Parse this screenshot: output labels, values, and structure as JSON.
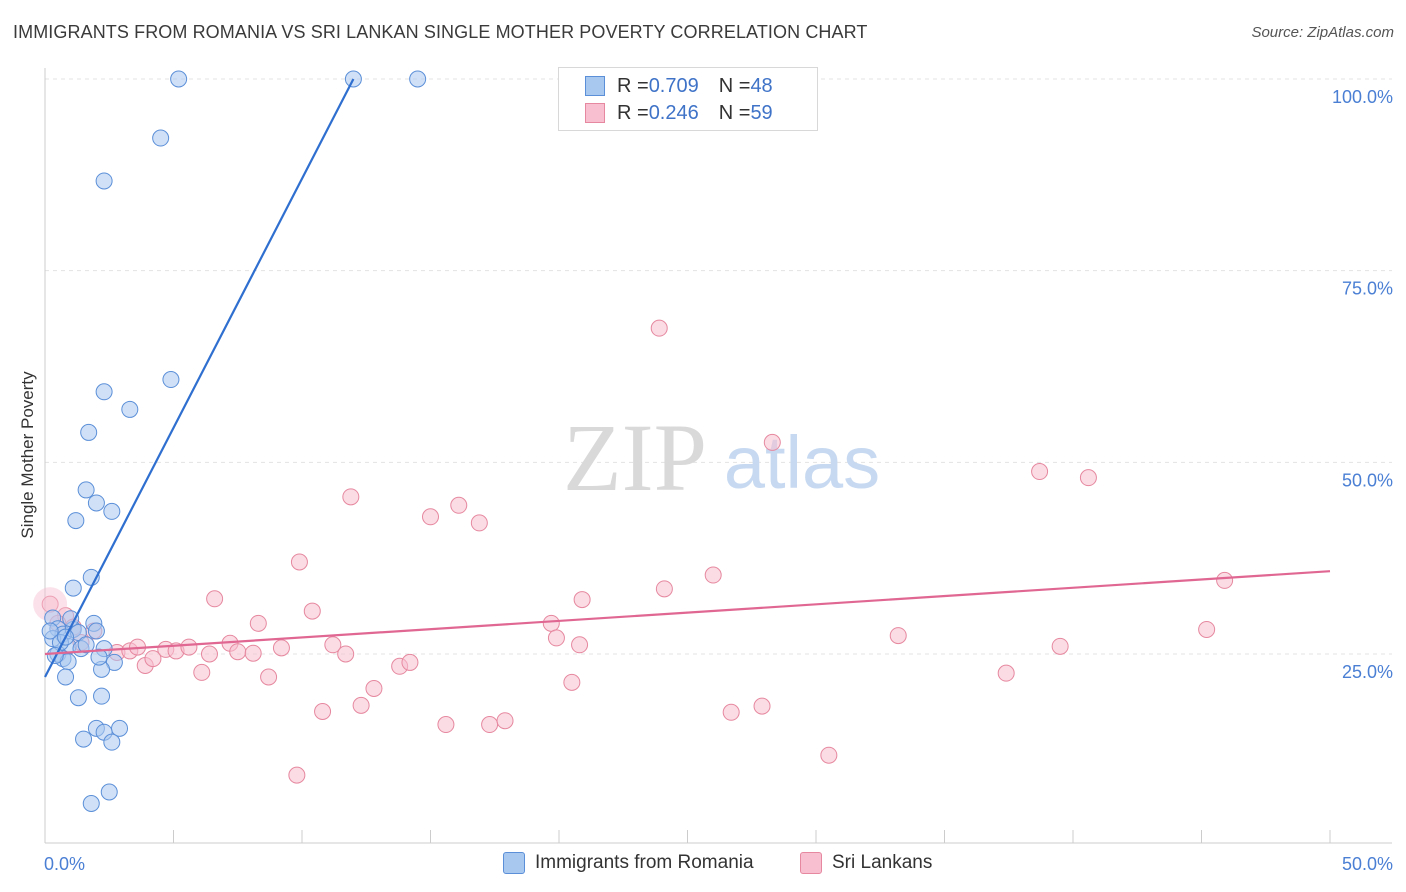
{
  "title": "IMMIGRANTS FROM ROMANIA VS SRI LANKAN SINGLE MOTHER POVERTY CORRELATION CHART",
  "source": "Source: ZipAtlas.com",
  "watermark": {
    "zip": "ZIP",
    "atlas": "atlas"
  },
  "colors": {
    "blue_fill": "#a9c8f0",
    "blue_stroke": "#5b8fd8",
    "blue_line": "#2f6fcf",
    "pink_fill": "#f7bfd0",
    "pink_stroke": "#e6889f",
    "pink_line": "#e06792",
    "tick_text": "#4a7fd4",
    "grid": "#e3e3e3"
  },
  "legend_top": [
    {
      "r_label": "R = ",
      "r_value": "0.709",
      "n_label": "N = ",
      "n_value": "48"
    },
    {
      "r_label": "R = ",
      "r_value": "0.246",
      "n_label": "N = ",
      "n_value": "59"
    }
  ],
  "chart_data": {
    "type": "scatter",
    "title": "IMMIGRANTS FROM ROMANIA VS SRI LANKAN SINGLE MOTHER POVERTY CORRELATION CHART",
    "xlabel": "",
    "ylabel": "Single Mother Poverty",
    "xlim": [
      0,
      50
    ],
    "ylim": [
      3,
      102
    ],
    "x_tick_labels": [
      "0.0%",
      "50.0%"
    ],
    "y_ticks": [
      25,
      50,
      75,
      100
    ],
    "y_tick_labels": [
      "25.0%",
      "50.0%",
      "75.0%",
      "100.0%"
    ],
    "grid": true,
    "legend_position": "bottom",
    "series": [
      {
        "name": "Immigrants from Romania",
        "color": "#a9c8f0",
        "R": 0.709,
        "N": 48,
        "trend": {
          "x0": 0.0,
          "y0": 22.0,
          "x1": 12.0,
          "y1": 100.0
        },
        "points": [
          {
            "x": 5.2,
            "y": 100.0
          },
          {
            "x": 12.0,
            "y": 100.0
          },
          {
            "x": 14.5,
            "y": 100.0
          },
          {
            "x": 4.5,
            "y": 92.3
          },
          {
            "x": 2.3,
            "y": 86.7
          },
          {
            "x": 4.9,
            "y": 60.8
          },
          {
            "x": 2.3,
            "y": 59.2
          },
          {
            "x": 3.3,
            "y": 56.9
          },
          {
            "x": 1.7,
            "y": 53.9
          },
          {
            "x": 1.6,
            "y": 46.4
          },
          {
            "x": 2.0,
            "y": 44.7
          },
          {
            "x": 2.6,
            "y": 43.6
          },
          {
            "x": 1.2,
            "y": 42.4
          },
          {
            "x": 1.8,
            "y": 35.0
          },
          {
            "x": 1.1,
            "y": 33.6
          },
          {
            "x": 0.3,
            "y": 29.7
          },
          {
            "x": 0.5,
            "y": 28.3
          },
          {
            "x": 0.7,
            "y": 27.6
          },
          {
            "x": 0.3,
            "y": 27.0
          },
          {
            "x": 1.1,
            "y": 28.2
          },
          {
            "x": 1.9,
            "y": 29.0
          },
          {
            "x": 2.0,
            "y": 28.0
          },
          {
            "x": 0.9,
            "y": 26.0
          },
          {
            "x": 1.4,
            "y": 25.7
          },
          {
            "x": 2.3,
            "y": 25.7
          },
          {
            "x": 0.5,
            "y": 25.0
          },
          {
            "x": 0.7,
            "y": 24.4
          },
          {
            "x": 0.9,
            "y": 24.0
          },
          {
            "x": 2.7,
            "y": 23.9
          },
          {
            "x": 2.2,
            "y": 23.0
          },
          {
            "x": 0.8,
            "y": 22.0
          },
          {
            "x": 2.2,
            "y": 19.5
          },
          {
            "x": 1.3,
            "y": 19.3
          },
          {
            "x": 2.0,
            "y": 15.3
          },
          {
            "x": 2.9,
            "y": 15.3
          },
          {
            "x": 2.3,
            "y": 14.8
          },
          {
            "x": 1.5,
            "y": 13.9
          },
          {
            "x": 2.6,
            "y": 13.5
          },
          {
            "x": 2.5,
            "y": 7.0
          },
          {
            "x": 1.8,
            "y": 5.5
          },
          {
            "x": 0.2,
            "y": 28.0
          },
          {
            "x": 1.3,
            "y": 27.8
          },
          {
            "x": 0.6,
            "y": 26.5
          },
          {
            "x": 1.6,
            "y": 26.2
          },
          {
            "x": 0.4,
            "y": 24.8
          },
          {
            "x": 2.1,
            "y": 24.6
          },
          {
            "x": 1.0,
            "y": 29.6
          },
          {
            "x": 0.8,
            "y": 27.2
          }
        ]
      },
      {
        "name": "Sri Lankans",
        "color": "#f7bfd0",
        "R": 0.246,
        "N": 59,
        "trend": {
          "x0": 0.0,
          "y0": 25.0,
          "x1": 50.0,
          "y1": 35.8
        },
        "points": [
          {
            "x": 0.2,
            "y": 31.5
          },
          {
            "x": 0.8,
            "y": 30.0
          },
          {
            "x": 1.1,
            "y": 28.5
          },
          {
            "x": 1.9,
            "y": 28.0
          },
          {
            "x": 1.4,
            "y": 26.5
          },
          {
            "x": 2.8,
            "y": 25.2
          },
          {
            "x": 3.3,
            "y": 25.4
          },
          {
            "x": 3.6,
            "y": 25.9
          },
          {
            "x": 3.9,
            "y": 23.5
          },
          {
            "x": 4.2,
            "y": 24.4
          },
          {
            "x": 4.7,
            "y": 25.6
          },
          {
            "x": 5.1,
            "y": 25.4
          },
          {
            "x": 5.6,
            "y": 25.9
          },
          {
            "x": 6.1,
            "y": 22.6
          },
          {
            "x": 6.4,
            "y": 25.0
          },
          {
            "x": 6.6,
            "y": 32.2
          },
          {
            "x": 7.2,
            "y": 26.4
          },
          {
            "x": 7.5,
            "y": 25.3
          },
          {
            "x": 8.1,
            "y": 25.1
          },
          {
            "x": 8.3,
            "y": 29.0
          },
          {
            "x": 8.7,
            "y": 22.0
          },
          {
            "x": 9.2,
            "y": 25.8
          },
          {
            "x": 9.8,
            "y": 9.2
          },
          {
            "x": 9.9,
            "y": 37.0
          },
          {
            "x": 10.4,
            "y": 30.6
          },
          {
            "x": 10.8,
            "y": 17.5
          },
          {
            "x": 11.2,
            "y": 26.2
          },
          {
            "x": 11.7,
            "y": 25.0
          },
          {
            "x": 11.9,
            "y": 45.5
          },
          {
            "x": 12.3,
            "y": 18.3
          },
          {
            "x": 12.8,
            "y": 20.5
          },
          {
            "x": 13.8,
            "y": 23.4
          },
          {
            "x": 14.2,
            "y": 23.9
          },
          {
            "x": 15.0,
            "y": 42.9
          },
          {
            "x": 15.6,
            "y": 15.8
          },
          {
            "x": 16.1,
            "y": 44.4
          },
          {
            "x": 16.9,
            "y": 42.1
          },
          {
            "x": 17.3,
            "y": 15.8
          },
          {
            "x": 17.9,
            "y": 16.3
          },
          {
            "x": 19.7,
            "y": 29.0
          },
          {
            "x": 19.9,
            "y": 27.1
          },
          {
            "x": 20.5,
            "y": 21.3
          },
          {
            "x": 20.8,
            "y": 26.2
          },
          {
            "x": 20.9,
            "y": 32.1
          },
          {
            "x": 23.9,
            "y": 67.5
          },
          {
            "x": 24.1,
            "y": 33.5
          },
          {
            "x": 26.0,
            "y": 35.3
          },
          {
            "x": 26.7,
            "y": 17.4
          },
          {
            "x": 27.9,
            "y": 18.2
          },
          {
            "x": 28.3,
            "y": 52.6
          },
          {
            "x": 30.5,
            "y": 11.8
          },
          {
            "x": 33.2,
            "y": 27.4
          },
          {
            "x": 37.4,
            "y": 22.5
          },
          {
            "x": 38.7,
            "y": 48.8
          },
          {
            "x": 39.5,
            "y": 26.0
          },
          {
            "x": 40.6,
            "y": 48.0
          },
          {
            "x": 45.2,
            "y": 28.2
          },
          {
            "x": 45.9,
            "y": 34.6
          },
          {
            "x": 0.5,
            "y": 29.0
          }
        ]
      }
    ]
  }
}
